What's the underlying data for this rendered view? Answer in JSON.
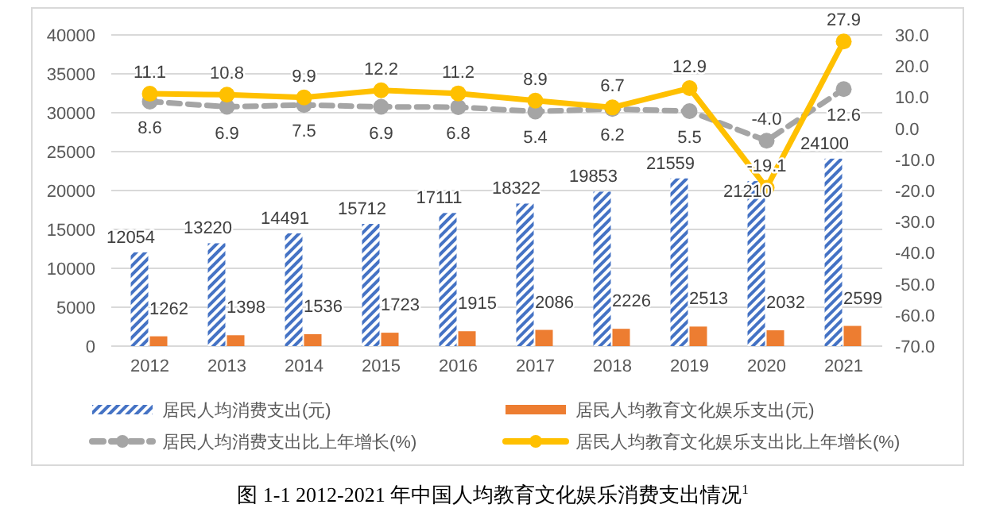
{
  "chart_data": {
    "type": "bar",
    "title": "图 1-1 2012-2021 年中国人均教育文化娱乐消费支出情况$^{1}$",
    "categories": [
      "2012",
      "2013",
      "2014",
      "2015",
      "2016",
      "2017",
      "2018",
      "2019",
      "2020",
      "2021"
    ],
    "series": [
      {
        "name": "居民人均消费支出(元)",
        "color": "#4472c4",
        "values": [
          12054,
          13220,
          14491,
          15712,
          17111,
          18322,
          19853,
          21559,
          21210,
          24100
        ]
      },
      {
        "name": "居民人均教育文化娱乐支出(元)",
        "color": "#ed7d31",
        "values": [
          1262,
          1398,
          1536,
          1723,
          1915,
          2086,
          2226,
          2513,
          2032,
          2599
        ]
      },
      {
        "name": "居民人均消费支出比上年增长(%)",
        "type": "line",
        "axis": "y2",
        "color": "#a5a5a5",
        "line_style": "dashed",
        "marker": "circle",
        "values": [
          8.6,
          6.9,
          7.5,
          6.9,
          6.8,
          5.4,
          6.2,
          5.5,
          -4.0,
          12.6
        ],
        "value_labels": [
          "8.6",
          "6.9",
          "7.5",
          "6.9",
          "6.8",
          "5.4",
          "6.2",
          "5.5",
          "-4.0",
          "12.6"
        ]
      },
      {
        "name": "居民人均教育文化娱乐支出比上年增长(%)",
        "type": "line",
        "axis": "y2",
        "color": "#ffc000",
        "line_style": "solid",
        "marker": "circle",
        "values": [
          11.1,
          10.8,
          9.9,
          12.2,
          11.2,
          8.9,
          6.7,
          12.9,
          -19.1,
          27.9
        ],
        "value_labels": [
          "11.1",
          "10.8",
          "9.9",
          "12.2",
          "11.2",
          "8.9",
          "6.7",
          "12.9",
          "-19.1",
          "27.9"
        ]
      }
    ],
    "ylim": [
      0,
      40000
    ],
    "yticks": [
      0,
      5000,
      10000,
      15000,
      20000,
      25000,
      30000,
      35000,
      40000
    ],
    "y2lim": [
      -70,
      30
    ],
    "y2ticks": [
      {
        "value": -70,
        "label": "-70.0"
      },
      {
        "value": -60,
        "label": "-60.0"
      },
      {
        "value": -50,
        "label": "-50.0"
      },
      {
        "value": -40,
        "label": "-40.0"
      },
      {
        "value": -30,
        "label": "-30.0"
      },
      {
        "value": -20,
        "label": "-20.0"
      },
      {
        "value": -10,
        "label": "-10.0"
      },
      {
        "value": 0,
        "label": "0.0"
      },
      {
        "value": 10,
        "label": "10.0"
      },
      {
        "value": 20,
        "label": "20.0"
      },
      {
        "value": 30,
        "label": "30.0"
      }
    ],
    "grid": "y",
    "legend": "bottom",
    "data_labels": true
  }
}
